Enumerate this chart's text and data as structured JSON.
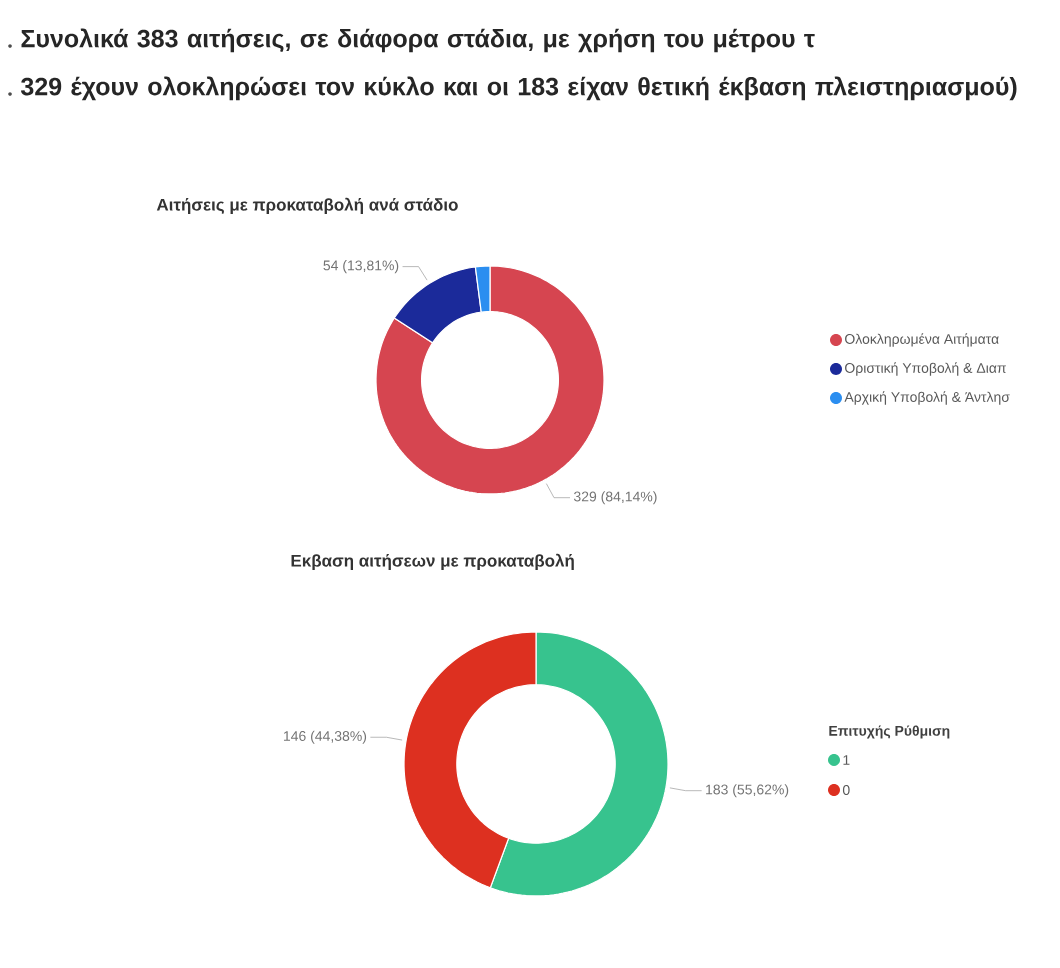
{
  "chart_data": [
    {
      "type": "donut",
      "title": "Αιτήσεις με προκαταβολή ανά στάδιο",
      "annotations": [
        "Συνολικά 383 αιτήσεις, σε διάφορα στάδια, με χρήση του μέτρου τ",
        "329 έχουν ολοκληρώσει τον κύκλο και οι 183 είχαν θετική έκβαση πλειστηριασμού)"
      ],
      "categories": [
        "Ολοκληρωμένα Αιτήματα",
        "Οριστική Υποβολή & Διαπ",
        "Αρχική Υποβολή & Άντλησ"
      ],
      "values": [
        329,
        54,
        8
      ],
      "value_labels": [
        "329 (84,14%)",
        "54 (13,81%)",
        null
      ],
      "colors": [
        "#d64550",
        "#1b2a9a",
        "#2b8ef0"
      ],
      "legend": "right"
    },
    {
      "type": "donut",
      "title": "Εκβαση αιτήσεων με προκαταβολή",
      "legend_title": "Επιτυχής Ρύθμιση",
      "categories": [
        "1",
        "0"
      ],
      "values": [
        183,
        146
      ],
      "value_labels": [
        "183 (55,62%)",
        "146 (44,38%)"
      ],
      "colors": [
        "#37c38e",
        "#dd3020"
      ],
      "legend": "right"
    }
  ]
}
